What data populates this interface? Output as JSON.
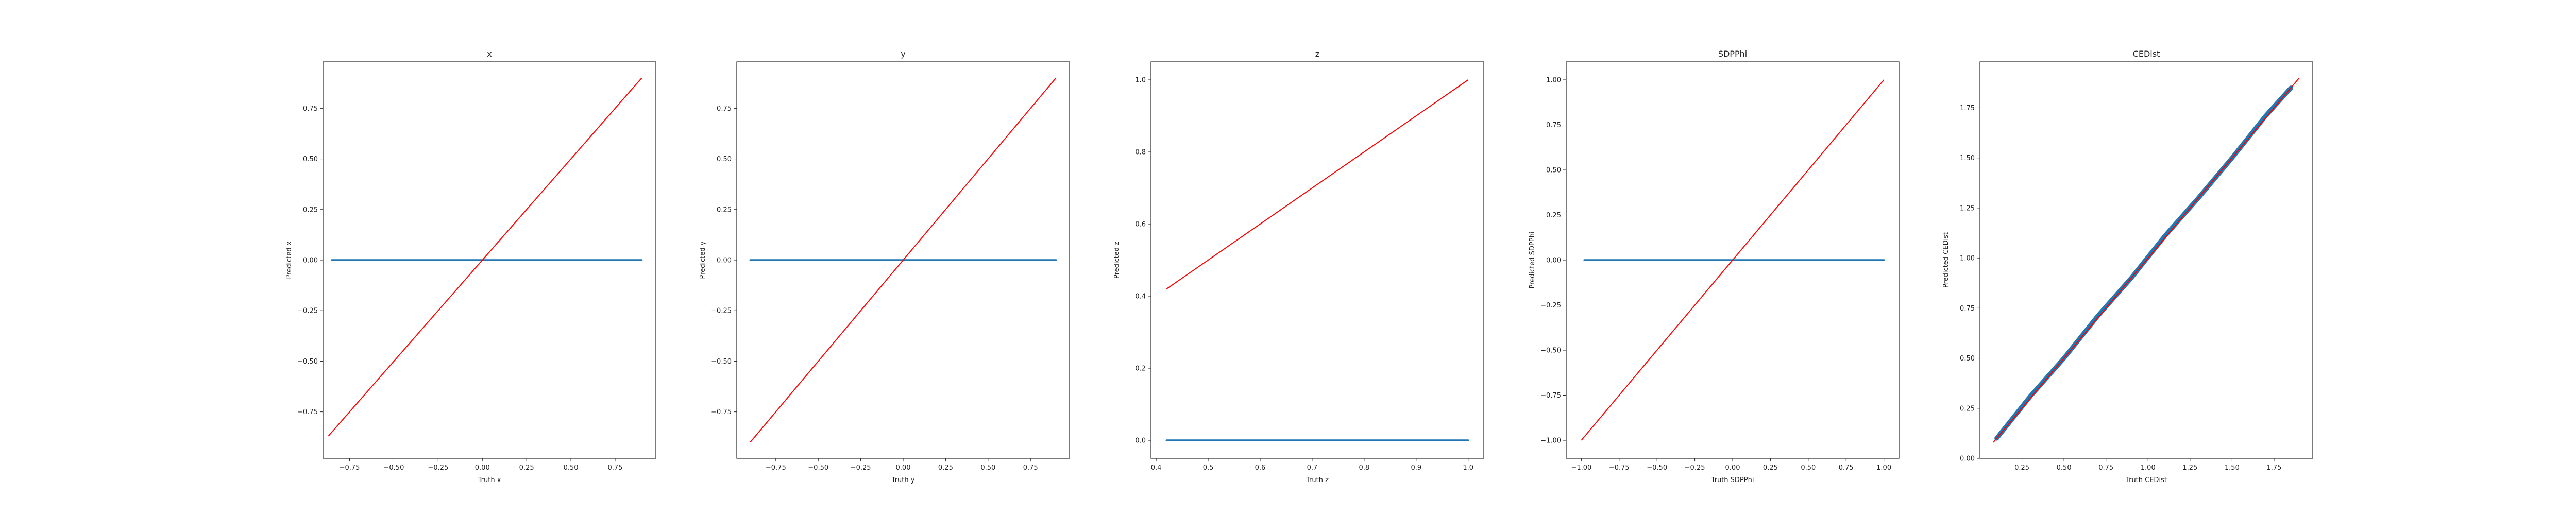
{
  "colors": {
    "series": "#1f77b4",
    "diagonal": "#ff0000",
    "axes": "#222222"
  },
  "chart_data": [
    {
      "type": "scatter",
      "title": "x",
      "xlabel": "Truth x",
      "ylabel": "Predicted x",
      "xlim": [
        -0.9,
        0.98
      ],
      "ylim": [
        -0.98,
        0.98
      ],
      "xticks": [
        -0.75,
        -0.5,
        -0.25,
        0.0,
        0.25,
        0.5,
        0.75
      ],
      "yticks": [
        -0.75,
        -0.5,
        -0.25,
        0.0,
        0.25,
        0.5,
        0.75
      ],
      "xtick_labels": [
        "−0.75",
        "−0.50",
        "−0.25",
        "0.00",
        "0.25",
        "0.50",
        "0.75"
      ],
      "ytick_labels": [
        "−0.75",
        "−0.50",
        "−0.25",
        "0.00",
        "0.25",
        "0.50",
        "0.75"
      ],
      "diagonal": [
        [
          -0.87,
          -0.87
        ],
        [
          0.9,
          0.9
        ]
      ],
      "points": [
        [
          -0.85,
          0.0
        ],
        [
          0.9,
          0.0
        ]
      ],
      "grid": false
    },
    {
      "type": "scatter",
      "title": "y",
      "xlabel": "Truth y",
      "ylabel": "Predicted y",
      "xlim": [
        -0.98,
        0.98
      ],
      "ylim": [
        -0.98,
        0.98
      ],
      "xticks": [
        -0.75,
        -0.5,
        -0.25,
        0.0,
        0.25,
        0.5,
        0.75
      ],
      "yticks": [
        -0.75,
        -0.5,
        -0.25,
        0.0,
        0.25,
        0.5,
        0.75
      ],
      "xtick_labels": [
        "−0.75",
        "−0.50",
        "−0.25",
        "0.00",
        "0.25",
        "0.50",
        "0.75"
      ],
      "ytick_labels": [
        "−0.75",
        "−0.50",
        "−0.25",
        "0.00",
        "0.25",
        "0.50",
        "0.75"
      ],
      "diagonal": [
        [
          -0.9,
          -0.9
        ],
        [
          0.9,
          0.9
        ]
      ],
      "points": [
        [
          -0.9,
          0.0
        ],
        [
          0.9,
          0.0
        ]
      ],
      "grid": false
    },
    {
      "type": "scatter",
      "title": "z",
      "xlabel": "Truth z",
      "ylabel": "Predicted z",
      "xlim": [
        0.39,
        1.03
      ],
      "ylim": [
        -0.05,
        1.05
      ],
      "xticks": [
        0.4,
        0.5,
        0.6,
        0.7,
        0.8,
        0.9,
        1.0
      ],
      "yticks": [
        0.0,
        0.2,
        0.4,
        0.6,
        0.8,
        1.0
      ],
      "xtick_labels": [
        "0.4",
        "0.5",
        "0.6",
        "0.7",
        "0.8",
        "0.9",
        "1.0"
      ],
      "ytick_labels": [
        "0.0",
        "0.2",
        "0.4",
        "0.6",
        "0.8",
        "1.0"
      ],
      "diagonal": [
        [
          0.42,
          0.42
        ],
        [
          1.0,
          1.0
        ]
      ],
      "points": [
        [
          0.42,
          0.0
        ],
        [
          1.0,
          0.0
        ]
      ],
      "grid": false
    },
    {
      "type": "scatter",
      "title": "SDPPhi",
      "xlabel": "Truth SDPPhi",
      "ylabel": "Predicted SDPPhi",
      "xlim": [
        -1.1,
        1.1
      ],
      "ylim": [
        -1.1,
        1.1
      ],
      "xticks": [
        -1.0,
        -0.75,
        -0.5,
        -0.25,
        0.0,
        0.25,
        0.5,
        0.75,
        1.0
      ],
      "yticks": [
        -1.0,
        -0.75,
        -0.5,
        -0.25,
        0.0,
        0.25,
        0.5,
        0.75,
        1.0
      ],
      "xtick_labels": [
        "−1.00",
        "−0.75",
        "−0.50",
        "−0.25",
        "0.00",
        "0.25",
        "0.50",
        "0.75",
        "1.00"
      ],
      "ytick_labels": [
        "−1.00",
        "−0.75",
        "−0.50",
        "−0.25",
        "0.00",
        "0.25",
        "0.50",
        "0.75",
        "1.00"
      ],
      "diagonal": [
        [
          -1.0,
          -1.0
        ],
        [
          1.0,
          1.0
        ]
      ],
      "points": [
        [
          -0.98,
          0.0
        ],
        [
          1.0,
          0.0
        ]
      ],
      "grid": false
    },
    {
      "type": "scatter",
      "title": "CEDist",
      "xlabel": "Truth CEDist",
      "ylabel": "Predicted CEDist",
      "xlim": [
        0.0,
        1.98
      ],
      "ylim": [
        0.0,
        1.98
      ],
      "xticks": [
        0.25,
        0.5,
        0.75,
        1.0,
        1.25,
        1.5,
        1.75
      ],
      "yticks": [
        0.0,
        0.25,
        0.5,
        0.75,
        1.0,
        1.25,
        1.5,
        1.75
      ],
      "xtick_labels": [
        "0.25",
        "0.50",
        "0.75",
        "1.00",
        "1.25",
        "1.50",
        "1.75"
      ],
      "ytick_labels": [
        "0.00",
        "0.25",
        "0.50",
        "0.75",
        "1.00",
        "1.25",
        "1.50",
        "1.75"
      ],
      "diagonal": [
        [
          0.08,
          0.08
        ],
        [
          1.9,
          1.9
        ]
      ],
      "points": [
        [
          0.1,
          0.1
        ],
        [
          0.3,
          0.31
        ],
        [
          0.5,
          0.5
        ],
        [
          0.7,
          0.71
        ],
        [
          0.9,
          0.9
        ],
        [
          1.1,
          1.11
        ],
        [
          1.3,
          1.3
        ],
        [
          1.5,
          1.5
        ],
        [
          1.7,
          1.71
        ],
        [
          1.85,
          1.85
        ]
      ],
      "grid": false
    }
  ]
}
